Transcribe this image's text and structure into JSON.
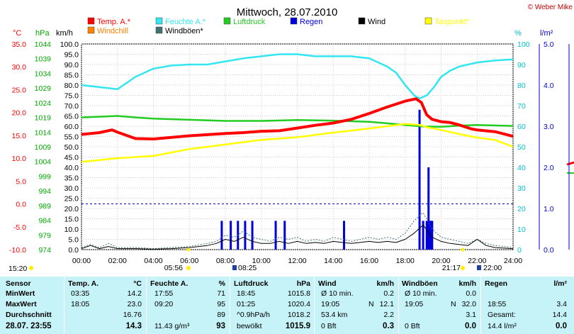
{
  "title": "Mittwoch, 28.07.2010",
  "copyright": "© Weber Mike",
  "units": {
    "temp": "°C",
    "press": "hPa",
    "wind": "km/h",
    "hum": "%",
    "rain": "l/m²"
  },
  "legend": [
    {
      "label": "Temp. A.*",
      "color": "#ff0000"
    },
    {
      "label": "Feuchte A.*",
      "color": "#33e6f0"
    },
    {
      "label": "Luftdruck",
      "color": "#22cc22"
    },
    {
      "label": "Regen",
      "color": "#0000dd"
    },
    {
      "label": "Wind",
      "color": "#000000"
    },
    {
      "label": "Taupunkt*",
      "color": "#ffff00"
    },
    {
      "label": "Windchill",
      "color": "#ff8000"
    },
    {
      "label": "Windböen*",
      "color": "#407070"
    }
  ],
  "sun_events": [
    "15:20",
    "05:56",
    "08:25",
    "21:17",
    "22:00"
  ],
  "chart_data": {
    "type": "line",
    "title": "Mittwoch, 28.07.2010",
    "x_unit": "hours",
    "xticks": [
      "00:00",
      "02:00",
      "04:00",
      "06:00",
      "08:00",
      "10:00",
      "12:00",
      "14:00",
      "16:00",
      "18:00",
      "20:00",
      "22:00",
      "24:00"
    ],
    "axes": {
      "temp": {
        "label": "°C",
        "range": [
          -10,
          35
        ],
        "ticks": [
          "35.0",
          "30.0",
          "25.0",
          "20.0",
          "15.0",
          "10.0",
          "5.0",
          "0.0",
          "-5.0",
          "-10.0"
        ]
      },
      "press": {
        "label": "hPa",
        "range": [
          974,
          1044
        ],
        "ticks": [
          "1044",
          "1039",
          "1034",
          "1029",
          "1024",
          "1019",
          "1014",
          "1009",
          "1004",
          "999",
          "994",
          "989",
          "984",
          "979",
          "974"
        ]
      },
      "wind": {
        "label": "km/h",
        "range": [
          0,
          100
        ],
        "ticks": [
          "100.0",
          "95.0",
          "90.0",
          "85.0",
          "80.0",
          "75.0",
          "70.0",
          "65.0",
          "60.0",
          "55.0",
          "50.0",
          "45.0",
          "40.0",
          "35.0",
          "30.0",
          "25.0",
          "20.0",
          "15.0",
          "10.0",
          "5.0",
          "0.0"
        ]
      },
      "hum": {
        "label": "%",
        "range": [
          0,
          100
        ],
        "ticks": [
          "100",
          "90",
          "80",
          "70",
          "60",
          "50",
          "40",
          "30",
          "20",
          "10",
          "0"
        ]
      },
      "rain": {
        "label": "l/m²",
        "range": [
          0,
          5
        ],
        "ticks": [
          "5.0",
          "4.0",
          "3.0",
          "2.0",
          "1.0",
          "0.0"
        ]
      }
    },
    "series": [
      {
        "name": "Feuchte A.*",
        "axis": "hum",
        "color": "#33e6f0",
        "points": [
          [
            0,
            80
          ],
          [
            1,
            79
          ],
          [
            2,
            78
          ],
          [
            2.5,
            81
          ],
          [
            3,
            84
          ],
          [
            4,
            88
          ],
          [
            5,
            89.5
          ],
          [
            6,
            90
          ],
          [
            7,
            90
          ],
          [
            8,
            91.5
          ],
          [
            9,
            93
          ],
          [
            10,
            94
          ],
          [
            11,
            95
          ],
          [
            12,
            95
          ],
          [
            13,
            94
          ],
          [
            14,
            94
          ],
          [
            15,
            94
          ],
          [
            16,
            93
          ],
          [
            17,
            89
          ],
          [
            17.5,
            86
          ],
          [
            18,
            80
          ],
          [
            18.5,
            75
          ],
          [
            18.8,
            73.5
          ],
          [
            19.2,
            75
          ],
          [
            19.6,
            79
          ],
          [
            20,
            84
          ],
          [
            20.5,
            87
          ],
          [
            21,
            89
          ],
          [
            22,
            91
          ],
          [
            23,
            92
          ],
          [
            24,
            92.5
          ]
        ]
      },
      {
        "name": "Luftdruck",
        "axis": "press",
        "color": "#22cc22",
        "points": [
          [
            0,
            1019
          ],
          [
            2,
            1019.5
          ],
          [
            3,
            1019
          ],
          [
            4,
            1018.6
          ],
          [
            6,
            1018.2
          ],
          [
            8,
            1017.8
          ],
          [
            10,
            1017.8
          ],
          [
            12,
            1018.1
          ],
          [
            14,
            1017.9
          ],
          [
            16,
            1017.5
          ],
          [
            17,
            1017
          ],
          [
            18,
            1016.4
          ],
          [
            19,
            1015.9
          ],
          [
            20,
            1015.8
          ],
          [
            21,
            1016.2
          ],
          [
            22,
            1016.4
          ],
          [
            24,
            1016.1
          ]
        ]
      },
      {
        "name": "Taupunkt*",
        "axis": "temp",
        "color": "#ffff00",
        "points": [
          [
            0,
            9.2
          ],
          [
            2,
            10
          ],
          [
            4,
            10.5
          ],
          [
            6,
            12
          ],
          [
            8,
            13
          ],
          [
            10,
            14
          ],
          [
            12,
            14.6
          ],
          [
            14,
            15.6
          ],
          [
            16,
            16.5
          ],
          [
            17,
            17
          ],
          [
            18,
            17.5
          ],
          [
            18.8,
            17.3
          ],
          [
            19.3,
            16.7
          ],
          [
            20,
            16.2
          ],
          [
            21,
            15.3
          ],
          [
            22,
            14.5
          ],
          [
            23,
            14
          ],
          [
            24,
            12.5
          ]
        ]
      },
      {
        "name": "Temp. A.*",
        "axis": "temp",
        "color": "#ff0000",
        "points": [
          [
            0,
            15.2
          ],
          [
            1,
            15.6
          ],
          [
            1.7,
            16.2
          ],
          [
            2,
            15.7
          ],
          [
            3,
            14.3
          ],
          [
            4,
            14.2
          ],
          [
            6,
            14.9
          ],
          [
            8,
            15.4
          ],
          [
            9,
            15.6
          ],
          [
            10,
            15.9
          ],
          [
            11,
            16
          ],
          [
            12,
            16.6
          ],
          [
            13,
            17.2
          ],
          [
            14,
            17.7
          ],
          [
            15,
            18.5
          ],
          [
            16,
            19.8
          ],
          [
            17,
            21.2
          ],
          [
            18,
            22.5
          ],
          [
            18.6,
            23
          ],
          [
            18.9,
            22.2
          ],
          [
            19.2,
            19.5
          ],
          [
            19.5,
            18.5
          ],
          [
            20,
            18
          ],
          [
            20.5,
            17.8
          ],
          [
            21,
            17.3
          ],
          [
            21.7,
            16.4
          ],
          [
            22,
            16.2
          ],
          [
            23,
            15.8
          ],
          [
            24,
            14.8
          ]
        ]
      },
      {
        "name": "Windböen*",
        "axis": "wind",
        "color": "#407070",
        "points": [
          [
            0,
            1
          ],
          [
            0.5,
            2.5
          ],
          [
            1,
            1
          ],
          [
            1.5,
            3
          ],
          [
            2,
            1
          ],
          [
            3,
            1
          ],
          [
            4,
            0.5
          ],
          [
            5,
            1
          ],
          [
            6,
            1.5
          ],
          [
            7,
            3
          ],
          [
            7.5,
            4
          ],
          [
            8,
            7
          ],
          [
            8.5,
            6
          ],
          [
            9,
            9
          ],
          [
            9.5,
            6
          ],
          [
            10,
            5
          ],
          [
            10.5,
            4
          ],
          [
            11,
            6
          ],
          [
            11.5,
            5
          ],
          [
            12,
            6
          ],
          [
            12.5,
            4
          ],
          [
            13,
            5
          ],
          [
            13.5,
            4
          ],
          [
            14,
            6
          ],
          [
            14.5,
            5
          ],
          [
            15,
            4
          ],
          [
            15.5,
            5
          ],
          [
            16,
            6
          ],
          [
            16.5,
            5
          ],
          [
            17,
            6
          ],
          [
            17.5,
            5
          ],
          [
            18,
            8
          ],
          [
            18.5,
            14
          ],
          [
            19,
            18
          ],
          [
            19.5,
            10
          ],
          [
            20,
            6
          ],
          [
            20.5,
            5
          ],
          [
            21,
            4
          ],
          [
            21.5,
            3
          ],
          [
            22,
            5
          ],
          [
            22.5,
            3
          ],
          [
            23,
            2
          ],
          [
            24,
            1
          ]
        ]
      },
      {
        "name": "Wind",
        "axis": "wind",
        "color": "#000000",
        "points": [
          [
            0,
            0.5
          ],
          [
            0.5,
            2
          ],
          [
            1,
            0.5
          ],
          [
            1.5,
            1.5
          ],
          [
            2,
            0.5
          ],
          [
            3,
            0.5
          ],
          [
            4,
            0.2
          ],
          [
            5,
            0.5
          ],
          [
            6,
            1
          ],
          [
            7,
            2
          ],
          [
            7.5,
            3
          ],
          [
            8,
            5
          ],
          [
            8.5,
            4
          ],
          [
            9,
            6
          ],
          [
            9.5,
            4
          ],
          [
            10,
            3
          ],
          [
            10.5,
            3
          ],
          [
            11,
            4
          ],
          [
            11.5,
            3
          ],
          [
            12,
            4
          ],
          [
            12.5,
            3
          ],
          [
            13,
            3.5
          ],
          [
            13.5,
            3
          ],
          [
            14,
            4
          ],
          [
            14.5,
            3.5
          ],
          [
            15,
            3
          ],
          [
            15.5,
            3.5
          ],
          [
            16,
            4
          ],
          [
            16.5,
            3.5
          ],
          [
            17,
            4
          ],
          [
            17.5,
            3.5
          ],
          [
            18,
            5
          ],
          [
            18.5,
            8
          ],
          [
            19,
            12
          ],
          [
            19.5,
            6
          ],
          [
            20,
            4
          ],
          [
            20.5,
            3
          ],
          [
            21,
            2.5
          ],
          [
            21.5,
            2
          ],
          [
            22,
            5
          ],
          [
            22.5,
            2
          ],
          [
            23,
            1
          ],
          [
            24,
            0.5
          ]
        ]
      }
    ],
    "rain_bars": {
      "axis": "rain",
      "color": "#0000dd",
      "bars": [
        [
          7.8,
          0.7
        ],
        [
          8.3,
          0.7
        ],
        [
          8.7,
          0.7
        ],
        [
          9.1,
          0.7
        ],
        [
          9.5,
          0.7
        ],
        [
          10.8,
          0.7
        ],
        [
          11.3,
          0.7
        ],
        [
          14.6,
          0.7
        ],
        [
          18.8,
          3.4
        ],
        [
          19.0,
          0.7
        ],
        [
          19.2,
          0.7
        ],
        [
          19.3,
          2.0
        ],
        [
          19.4,
          0.7
        ],
        [
          19.5,
          0.7
        ]
      ]
    },
    "dashed_line": {
      "axis": "temp",
      "value": 0
    }
  },
  "table": {
    "headers": [
      "Sensor",
      "Temp. A.",
      "°C",
      "Feuchte A.",
      "%",
      "Luftdruck",
      "hPa",
      "Wind",
      "km/h",
      "Windböen",
      "km/h",
      "Regen",
      "l/m²"
    ],
    "rows": [
      {
        "label": "MinWert",
        "temp_t": "03:35",
        "temp_v": "14.2",
        "hum_t": "17:55",
        "hum_v": "71",
        "press_t": "18:45",
        "press_v": "1015.8",
        "wind_t": "Ø 10 min.",
        "wind_v": "0.2",
        "gust_t": "Ø 10 min.",
        "gust_v": "0.0",
        "rain_t": "",
        "rain_v": ""
      },
      {
        "label": "MaxWert",
        "temp_t": "18:05",
        "temp_v": "23.0",
        "hum_t": "09:20",
        "hum_v": "95",
        "press_t": "01:25",
        "press_v": "1020.4",
        "wind_t": "19:05",
        "wind_d": "N",
        "wind_v": "12.1",
        "gust_t": "19:05",
        "gust_d": "N",
        "gust_v": "32.0",
        "rain_t": "18:55",
        "rain_v": "3.4"
      },
      {
        "label": "Durchschnitt",
        "temp_t": "",
        "temp_v": "16.76",
        "hum_t": "",
        "hum_v": "89",
        "press_t": "^0.9hPa/h",
        "press_v": "1018.2",
        "wind_t": "53.4 km",
        "wind_v": "2.2",
        "gust_t": "",
        "gust_v": "3.1",
        "rain_t": "Gesamt:",
        "rain_v": "14.4"
      },
      {
        "label": "28.07. 23:55",
        "temp_t": "",
        "temp_v": "14.3",
        "hum_t": "11.43 g/m³",
        "hum_v": "93",
        "press_t": "bewölkt",
        "press_v": "1015.9",
        "wind_t": "0 Bft",
        "wind_v": "0.3",
        "gust_t": "0 Bft",
        "gust_v": "0.0",
        "rain_t": "14.4 l/m²",
        "rain_v": "0.0"
      }
    ]
  }
}
